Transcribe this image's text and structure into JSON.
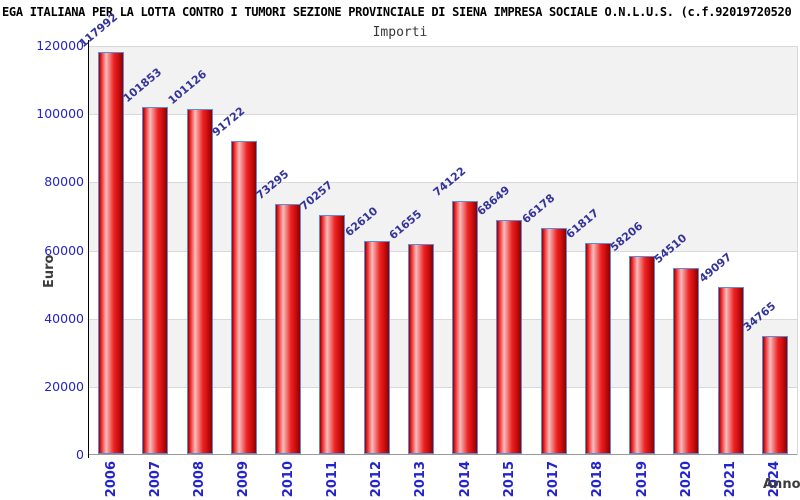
{
  "header": {
    "title": "EGA ITALIANA PER LA LOTTA CONTRO I TUMORI SEZIONE PROVINCIALE DI SIENA IMPRESA SOCIALE O.N.L.U.S. (c.f.92019720520",
    "subtitle": "Importi"
  },
  "chart_data": {
    "type": "bar",
    "title": "Importi",
    "xlabel": "Anno",
    "ylabel": "Euro",
    "categories": [
      "2006",
      "2007",
      "2008",
      "2009",
      "2010",
      "2011",
      "2012",
      "2013",
      "2014",
      "2015",
      "2017",
      "2018",
      "2019",
      "2020",
      "2021",
      "2024"
    ],
    "values": [
      117992,
      101853,
      101126,
      91722,
      73295,
      70257,
      62610,
      61655,
      74122,
      68649,
      66178,
      61817,
      58206,
      54510,
      49097,
      34765
    ],
    "ylim": [
      0,
      120000
    ],
    "yticks": [
      0,
      20000,
      40000,
      60000,
      80000,
      100000,
      120000
    ],
    "grid": true,
    "legend_position": "none",
    "colors": {
      "bar_border": "#5b8ddb",
      "bar_dark": "#8e0000",
      "bar_red": "#ee2222",
      "bar_highlight": "#f6bcbc",
      "tick_label": "#2424cc",
      "value_label": "#34349a",
      "band_gray": "#f2f2f2",
      "gridline": "#d9d9d9",
      "axis_line": "#000000",
      "baseline": "#9a9a9a",
      "title_color": "#000000",
      "subtitle_color": "#3a3a3a",
      "axis_title_color": "#3c3c3c"
    }
  }
}
